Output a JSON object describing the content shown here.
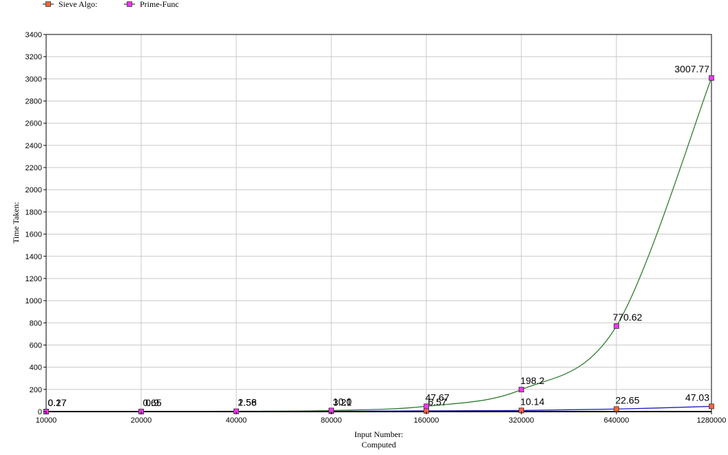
{
  "chart_data": {
    "type": "line",
    "title": "",
    "xlabel": [
      "Input Number:",
      "Computed"
    ],
    "ylabel": "Time Taken:",
    "x_scale": "log2",
    "categories": [
      "10000",
      "20000",
      "40000",
      "80000",
      "160000",
      "320000",
      "640000",
      "1280000"
    ],
    "x": [
      10000,
      20000,
      40000,
      80000,
      160000,
      320000,
      640000,
      1280000
    ],
    "ylim": [
      0,
      3400
    ],
    "yticks": [
      0,
      200,
      400,
      600,
      800,
      1000,
      1200,
      1400,
      1600,
      1800,
      2000,
      2200,
      2400,
      2600,
      2800,
      3000,
      3200,
      3400
    ],
    "grid": true,
    "legend_placement": "top-left",
    "series": [
      {
        "name": "Sieve Algo:",
        "values": [
          0.17,
          0.65,
          1.56,
          3.21,
          6.57,
          10.14,
          22.65,
          47.03
        ],
        "labels": [
          "0.17",
          "0.65",
          "1.56",
          "3.21",
          "6.57",
          "10.14",
          "22.65",
          "47.03"
        ],
        "line_color": "#1f1fbf",
        "marker_color": "#ff6633"
      },
      {
        "name": "Prime-Func",
        "values": [
          0.27,
          0.9,
          2.58,
          10.0,
          47.67,
          198.2,
          770.62,
          3007.77
        ],
        "labels": [
          "0.27",
          "0.9",
          "2.58",
          "10.0",
          "47.67",
          "198.2",
          "770.62",
          "3007.77"
        ],
        "line_color": "#2e7d2e",
        "marker_color": "#ff33ff"
      }
    ]
  }
}
